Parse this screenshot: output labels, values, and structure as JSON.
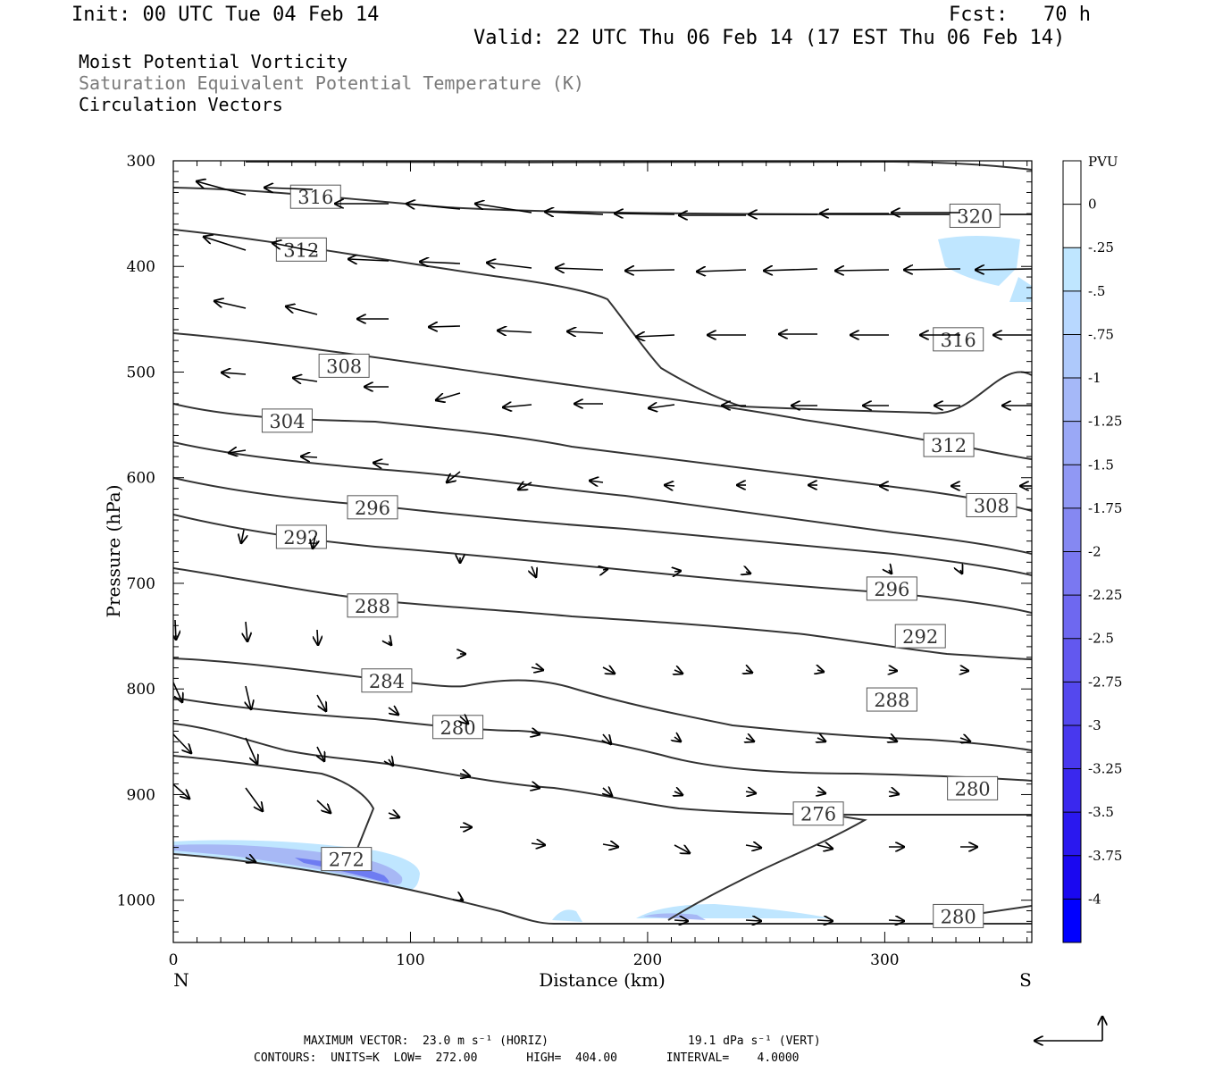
{
  "header": {
    "init": "Init: 00 UTC Tue 04 Feb 14",
    "fcst": "Fcst:   70 h",
    "valid": "Valid: 22 UTC Thu 06 Feb 14 (17 EST Thu 06 Feb 14)"
  },
  "legend": {
    "line1": "Moist Potential Vorticity",
    "line2": "Saturation Equivalent Potential Temperature (K)",
    "line3": "Circulation Vectors"
  },
  "footer": {
    "max_vector_h": "MAXIMUM VECTOR:  23.0 m s⁻¹ (HORIZ)",
    "max_vector_v": "19.1 dPa s⁻¹ (VERT)",
    "contours": "CONTOURS:  UNITS=K  LOW=  272.00       HIGH=  404.00       INTERVAL=    4.0000"
  },
  "colors": {
    "contour": "#333333",
    "pv_light": "#bfe6ff",
    "pv_mid": "#a7b8f5",
    "pv_dark": "#6e7cf2",
    "vector": "#000000"
  },
  "chart_data": {
    "type": "cross-section",
    "xlabel": "Distance (km)",
    "ylabel": "Pressure (hPa)",
    "xlim": [
      0,
      362
    ],
    "ylim": [
      300,
      1040
    ],
    "x_ticks": [
      "0",
      "100",
      "200",
      "300"
    ],
    "x_tick_values": [
      0,
      100,
      200,
      300
    ],
    "y_ticks": [
      "300",
      "400",
      "500",
      "600",
      "700",
      "800",
      "900",
      "1000"
    ],
    "y_tick_values": [
      300,
      400,
      500,
      600,
      700,
      800,
      900,
      1000
    ],
    "left_end_label": "N",
    "right_end_label": "S",
    "colorbar": {
      "title": "PVU",
      "labels": [
        "0",
        "-.25",
        "-.5",
        "-.75",
        "-1",
        "-1.25",
        "-1.5",
        "-1.75",
        "-2",
        "-2.25",
        "-2.5",
        "-2.75",
        "-3",
        "-3.25",
        "-3.5",
        "-3.75",
        "-4"
      ],
      "colors": [
        "#ffffff",
        "#ffffff",
        "#bfe6ff",
        "#b8d8ff",
        "#aec9fb",
        "#a5b8f8",
        "#9aa8f6",
        "#9098f4",
        "#8588f2",
        "#7a78f1",
        "#6e68f0",
        "#6258ef",
        "#5448ee",
        "#4838ee",
        "#3a28ee",
        "#2a18ef",
        "#1a08f0",
        "#0000ff"
      ]
    },
    "contour_labels": [
      {
        "text": "316",
        "x": 60,
        "p": 334
      },
      {
        "text": "320",
        "x": 338,
        "p": 352
      },
      {
        "text": "312",
        "x": 54,
        "p": 384
      },
      {
        "text": "316",
        "x": 331,
        "p": 469
      },
      {
        "text": "308",
        "x": 72,
        "p": 494
      },
      {
        "text": "312",
        "x": 327,
        "p": 569
      },
      {
        "text": "304",
        "x": 48,
        "p": 546
      },
      {
        "text": "308",
        "x": 345,
        "p": 626
      },
      {
        "text": "296",
        "x": 84,
        "p": 628
      },
      {
        "text": "292",
        "x": 54,
        "p": 656
      },
      {
        "text": "296",
        "x": 303,
        "p": 705
      },
      {
        "text": "288",
        "x": 84,
        "p": 721
      },
      {
        "text": "292",
        "x": 315,
        "p": 750
      },
      {
        "text": "284",
        "x": 90,
        "p": 792
      },
      {
        "text": "288",
        "x": 303,
        "p": 810
      },
      {
        "text": "280",
        "x": 120,
        "p": 836
      },
      {
        "text": "280",
        "x": 337,
        "p": 894
      },
      {
        "text": "276",
        "x": 272,
        "p": 918
      },
      {
        "text": "272",
        "x": 73,
        "p": 961
      },
      {
        "text": "280",
        "x": 331,
        "p": 1015
      }
    ]
  }
}
